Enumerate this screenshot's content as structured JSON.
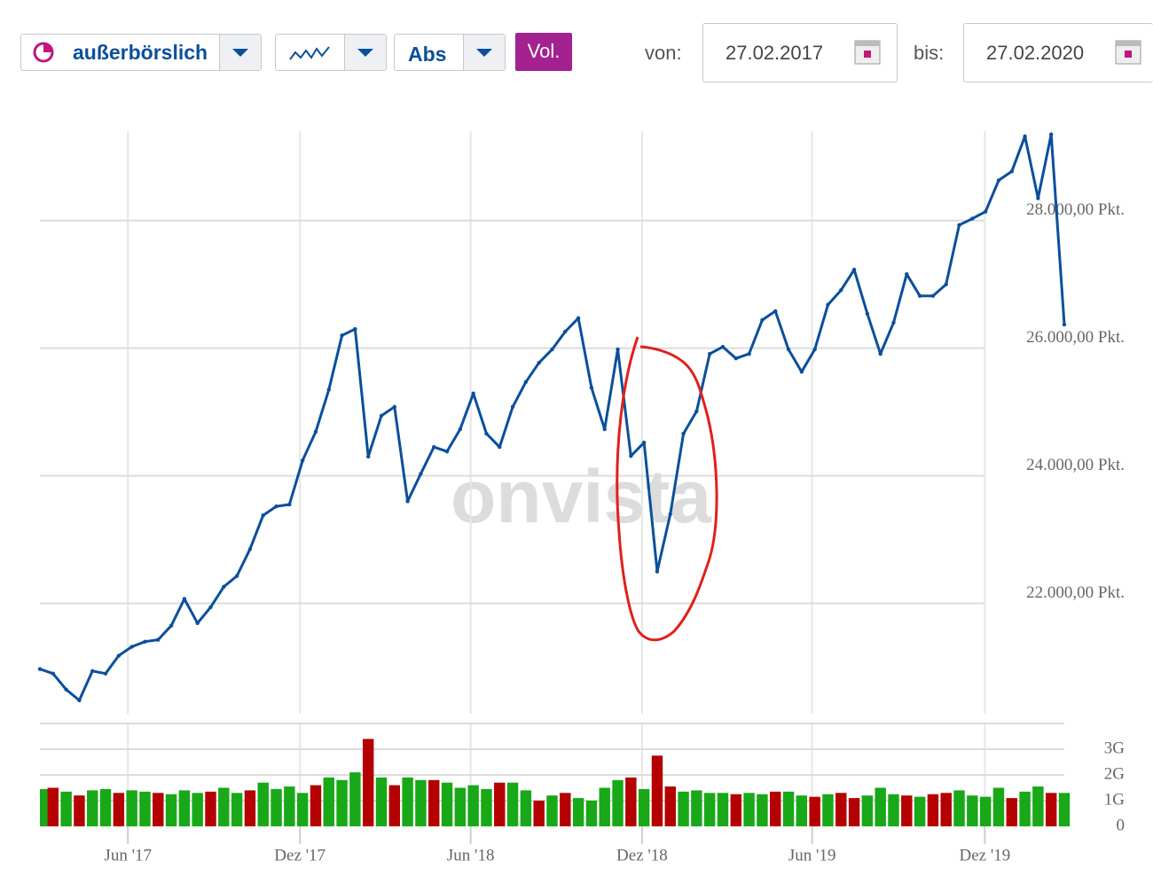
{
  "toolbar": {
    "exchange": "außerbörslich",
    "scale": "Abs",
    "volume": "Vol.",
    "from_label": "von:",
    "from_date": "27.02.2017",
    "to_label": "bis:",
    "to_date": "27.02.2020"
  },
  "watermark": "onvista",
  "chart_data": [
    {
      "type": "line",
      "color": "#0b4f9c",
      "grid": true,
      "x": [
        0,
        2,
        4,
        6,
        8,
        10,
        12,
        14,
        16,
        18,
        20,
        22,
        24,
        26,
        28,
        30,
        32,
        34,
        36,
        38,
        40,
        42,
        44,
        46,
        48,
        50,
        52,
        54,
        56,
        58,
        60,
        62,
        64,
        66,
        68,
        70,
        72,
        74,
        76,
        78,
        80,
        82,
        84,
        86,
        88,
        90,
        92,
        94,
        96,
        98,
        100,
        102,
        104,
        106,
        108,
        110,
        112,
        114,
        116,
        118,
        120,
        122,
        124,
        126,
        128,
        130,
        132,
        134,
        136,
        138,
        140,
        142,
        144,
        146,
        148,
        150,
        152,
        154,
        156
      ],
      "values": [
        20970,
        20900,
        20650,
        20480,
        20940,
        20900,
        21180,
        21320,
        21400,
        21430,
        21650,
        22070,
        21690,
        21940,
        22260,
        22430,
        22850,
        23380,
        23520,
        23550,
        24240,
        24690,
        25350,
        26200,
        26300,
        24300,
        24940,
        25080,
        23600,
        24030,
        24450,
        24380,
        24730,
        25290,
        24660,
        24450,
        25080,
        25470,
        25770,
        25980,
        26260,
        26470,
        25380,
        24730,
        25980,
        24310,
        24520,
        22500,
        23400,
        24660,
        25010,
        25910,
        26020,
        25840,
        25910,
        26440,
        26580,
        25980,
        25630,
        25980,
        26680,
        26910,
        27230,
        26540,
        25910,
        26400,
        27160,
        26820,
        26820,
        27000,
        27930,
        28030,
        28140,
        28630,
        28770,
        29320,
        28350,
        29350,
        26370
      ],
      "xlim": [
        0,
        156
      ],
      "ylim": [
        20270,
        29400
      ],
      "yticks": [
        {
          "value": 22000,
          "label": "22.000,00 Pkt."
        },
        {
          "value": 24000,
          "label": "24.000,00 Pkt."
        },
        {
          "value": 26000,
          "label": "26.000,00 Pkt."
        },
        {
          "value": 28000,
          "label": "28.000,00 Pkt."
        }
      ]
    },
    {
      "type": "bar",
      "grid": true,
      "x": [
        0,
        2,
        4,
        6,
        8,
        10,
        12,
        14,
        16,
        18,
        20,
        22,
        24,
        26,
        28,
        30,
        32,
        34,
        36,
        38,
        40,
        42,
        44,
        46,
        48,
        50,
        52,
        54,
        56,
        58,
        60,
        62,
        64,
        66,
        68,
        70,
        72,
        74,
        76,
        78,
        80,
        82,
        84,
        86,
        88,
        90,
        92,
        94,
        96,
        98,
        100,
        102,
        104,
        106,
        108,
        110,
        112,
        114,
        116,
        118,
        120,
        122,
        124,
        126,
        128,
        130,
        132,
        134,
        136,
        138,
        140,
        142,
        144,
        146,
        148,
        150,
        152,
        154,
        156
      ],
      "values": [
        1.45,
        1.5,
        1.35,
        1.2,
        1.4,
        1.45,
        1.3,
        1.4,
        1.35,
        1.3,
        1.25,
        1.4,
        1.3,
        1.35,
        1.5,
        1.3,
        1.4,
        1.7,
        1.45,
        1.55,
        1.3,
        1.6,
        1.9,
        1.8,
        2.1,
        3.4,
        1.9,
        1.6,
        1.9,
        1.8,
        1.8,
        1.7,
        1.5,
        1.6,
        1.45,
        1.7,
        1.7,
        1.4,
        1.0,
        1.2,
        1.3,
        1.1,
        1.0,
        1.5,
        1.8,
        1.9,
        1.45,
        2.75,
        1.55,
        1.35,
        1.4,
        1.3,
        1.3,
        1.25,
        1.3,
        1.25,
        1.35,
        1.35,
        1.2,
        1.15,
        1.25,
        1.3,
        1.1,
        1.2,
        1.5,
        1.25,
        1.2,
        1.15,
        1.25,
        1.3,
        1.4,
        1.2,
        1.15,
        1.5,
        1.1,
        1.35,
        1.55,
        1.3,
        1.3
      ],
      "colors": [
        "#18a818",
        "#b40000",
        "#18a818",
        "#b40000",
        "#18a818",
        "#18a818",
        "#b40000",
        "#18a818",
        "#18a818",
        "#b40000",
        "#18a818",
        "#18a818",
        "#18a818",
        "#b40000",
        "#18a818",
        "#18a818",
        "#b40000",
        "#18a818",
        "#18a818",
        "#18a818",
        "#18a818",
        "#b40000",
        "#18a818",
        "#18a818",
        "#18a818",
        "#b40000",
        "#18a818",
        "#b40000",
        "#18a818",
        "#18a818",
        "#b40000",
        "#18a818",
        "#18a818",
        "#18a818",
        "#18a818",
        "#b40000",
        "#18a818",
        "#18a818",
        "#b40000",
        "#18a818",
        "#b40000",
        "#18a818",
        "#18a818",
        "#18a818",
        "#18a818",
        "#b40000",
        "#18a818",
        "#b40000",
        "#b40000",
        "#18a818",
        "#18a818",
        "#18a818",
        "#18a818",
        "#b40000",
        "#18a818",
        "#18a818",
        "#b40000",
        "#18a818",
        "#18a818",
        "#b40000",
        "#18a818",
        "#b40000",
        "#b40000",
        "#18a818",
        "#18a818",
        "#18a818",
        "#b40000",
        "#18a818",
        "#b40000",
        "#b40000",
        "#18a818",
        "#18a818",
        "#18a818",
        "#18a818",
        "#b40000",
        "#18a818",
        "#18a818",
        "#b40000",
        "#18a818"
      ],
      "xlim": [
        0,
        156
      ],
      "xticks": [
        {
          "value": 13.4,
          "label": "Jun '17"
        },
        {
          "value": 39.6,
          "label": "Dez '17"
        },
        {
          "value": 65.6,
          "label": "Jun '18"
        },
        {
          "value": 91.7,
          "label": "Dez '18"
        },
        {
          "value": 117.6,
          "label": "Jun '19"
        },
        {
          "value": 143.9,
          "label": "Dez '19"
        }
      ],
      "ylim": [
        0,
        4
      ],
      "yticks": [
        0,
        {
          "value": 1,
          "label": "1G"
        },
        {
          "value": 2,
          "label": "2G"
        },
        {
          "value": 3,
          "label": "3G"
        }
      ]
    }
  ]
}
